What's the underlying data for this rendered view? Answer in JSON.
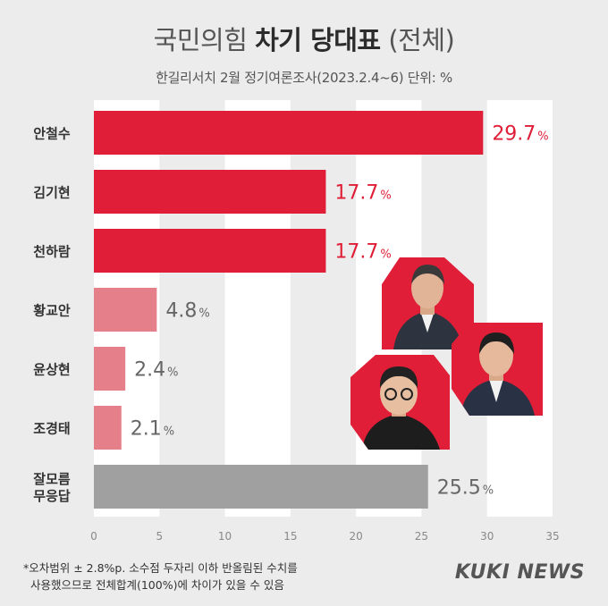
{
  "title_light": "국민의힘",
  "title_bold": "차기 당대표",
  "title_suffix": "(전체)",
  "subtitle": "한길리서치 2월 정기여론조사(2023.2.4~6) 단위: %",
  "footnote": {
    "line1": "*오차범위 ± 2.8%p. 소수점 두자리 이하 반올림된 수치를",
    "line2": "사용했으므로 전체합계(100%)에 차이가 있을 수 있음"
  },
  "logo": "KUKI NEWS",
  "colors": {
    "strong": "#e01e37",
    "light": "#e57f8a",
    "gray": "#a0a0a0",
    "value_strong": "#e01e37",
    "value_other": "#666666"
  },
  "chart_data": {
    "type": "bar",
    "orientation": "horizontal",
    "categories": [
      "안철수",
      "김기현",
      "천하람",
      "황교안",
      "윤상현",
      "조경태",
      "잘모름\n무응답"
    ],
    "values": [
      29.7,
      17.7,
      17.7,
      4.8,
      2.4,
      2.1,
      25.5
    ],
    "value_suffix": "%",
    "bar_styles": [
      "strong",
      "strong",
      "strong",
      "light",
      "light",
      "light",
      "gray"
    ],
    "xlim": [
      0,
      35
    ],
    "xticks": [
      0,
      5,
      10,
      15,
      20,
      25,
      30,
      35
    ],
    "grid": "vertical bands"
  },
  "photos": [
    {
      "name": "ahn-cheol-soo-photo"
    },
    {
      "name": "kim-gi-hyeon-photo"
    },
    {
      "name": "cheon-ha-ram-photo"
    }
  ]
}
